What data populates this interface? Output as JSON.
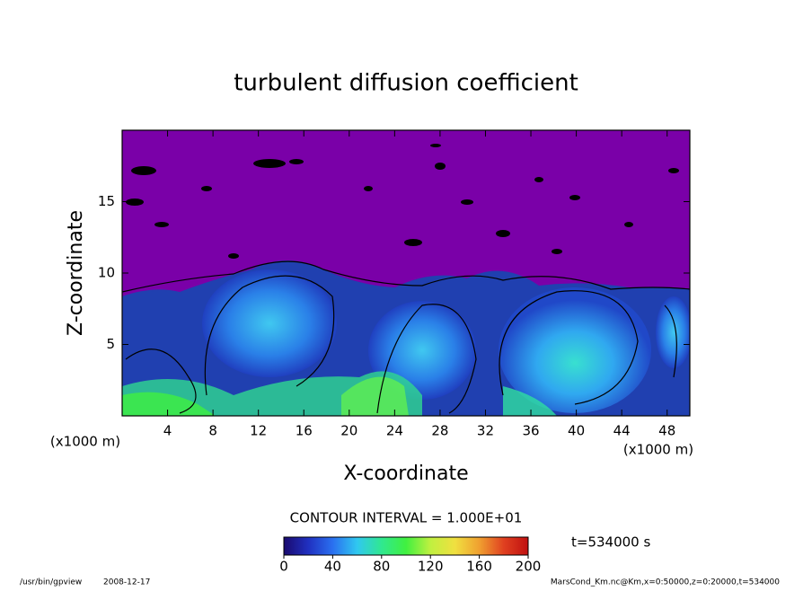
{
  "chart_data": {
    "type": "contour",
    "title": "turbulent diffusion coefficient",
    "xlabel": "X-coordinate",
    "ylabel": "Z-coordinate",
    "axis_unit_label": "(x1000 m)",
    "xlim": [
      0,
      50
    ],
    "xticks": [
      4,
      8,
      12,
      16,
      20,
      24,
      28,
      32,
      36,
      40,
      44,
      48
    ],
    "ylim": [
      0,
      20
    ],
    "yticks": [
      5,
      10,
      15
    ],
    "contour_interval_label": "CONTOUR INTERVAL = 1.000E+01",
    "time_label": "t=534000 s",
    "colorbar": {
      "lim": [
        0,
        200
      ],
      "ticks": [
        0,
        40,
        80,
        120,
        160,
        200
      ],
      "colors": [
        "#1a0a6e",
        "#2030c0",
        "#2a70f0",
        "#30c8f0",
        "#30e890",
        "#40f040",
        "#c0f040",
        "#f0e040",
        "#f0a030",
        "#e04020",
        "#c01010"
      ]
    },
    "footer_program": "/usr/bin/gpview",
    "footer_date": "2008-12-17",
    "footer_source": "MarsCond_Km.nc@Km,x=0:50000,z=0:20000,t=534000"
  }
}
